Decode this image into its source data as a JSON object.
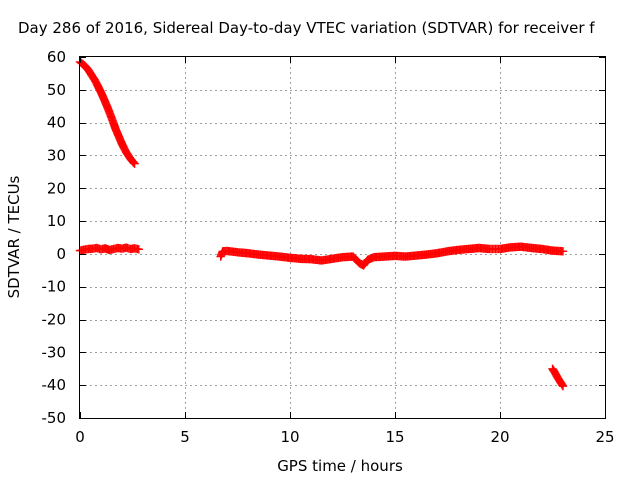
{
  "chart_data": {
    "type": "scatter",
    "title": "Day 286 of 2016, Sidereal Day-to-day VTEC variation (SDTVAR) for receiver f",
    "xlabel": "GPS time / hours",
    "ylabel": "SDTVAR / TECUs",
    "xlim": [
      0,
      25
    ],
    "ylim": [
      -50,
      60
    ],
    "x_ticks": [
      "0",
      "5",
      "10",
      "15",
      "20",
      "25"
    ],
    "y_ticks": [
      "60",
      "50",
      "40",
      "30",
      "20",
      "10",
      "0",
      "-10",
      "-20",
      "-30",
      "-40",
      "-50"
    ],
    "grid": true,
    "legend": "none",
    "marker": "plus",
    "series_color": "#ff0000",
    "series": [
      {
        "segment": "early-descending",
        "x": [
          0.0,
          0.1,
          0.2,
          0.3,
          0.4,
          0.5,
          0.6,
          0.7,
          0.8,
          0.9,
          1.0,
          1.1,
          1.2,
          1.3,
          1.4,
          1.5,
          1.6,
          1.7,
          1.8,
          1.9,
          2.0,
          2.1,
          2.2,
          2.3,
          2.4,
          2.5,
          2.6
        ],
        "y": [
          58.5,
          58.0,
          57.5,
          56.8,
          56.0,
          55.0,
          54.0,
          53.0,
          51.8,
          50.5,
          49.2,
          47.8,
          46.3,
          44.8,
          43.2,
          41.5,
          39.8,
          38.0,
          36.5,
          35.0,
          33.5,
          32.2,
          31.0,
          30.0,
          29.0,
          28.2,
          27.5
        ]
      },
      {
        "segment": "early-near-zero",
        "x": [
          0.0,
          0.2,
          0.4,
          0.6,
          0.8,
          1.0,
          1.2,
          1.4,
          1.6,
          1.8,
          2.0,
          2.2,
          2.4,
          2.6,
          2.8
        ],
        "y": [
          1.0,
          1.3,
          1.5,
          1.6,
          1.8,
          1.4,
          1.7,
          1.2,
          1.5,
          1.8,
          1.6,
          1.9,
          1.5,
          1.7,
          1.4
        ]
      },
      {
        "segment": "main-near-zero",
        "x": [
          6.7,
          6.8,
          7.0,
          7.5,
          8.0,
          8.5,
          9.0,
          9.5,
          10.0,
          10.5,
          11.0,
          11.5,
          12.0,
          12.5,
          13.0,
          13.3,
          13.5,
          13.7,
          14.0,
          14.5,
          15.0,
          15.5,
          16.0,
          16.5,
          17.0,
          17.5,
          18.0,
          18.5,
          19.0,
          19.5,
          20.0,
          20.5,
          21.0,
          21.5,
          22.0,
          22.5,
          23.0
        ],
        "y": [
          -0.8,
          0.8,
          0.9,
          0.5,
          0.2,
          -0.2,
          -0.5,
          -0.8,
          -1.2,
          -1.5,
          -1.6,
          -2.0,
          -1.5,
          -1.0,
          -0.8,
          -2.8,
          -3.5,
          -1.8,
          -1.0,
          -0.8,
          -0.6,
          -0.8,
          -0.5,
          -0.2,
          0.2,
          0.8,
          1.2,
          1.5,
          1.8,
          1.5,
          1.5,
          2.0,
          2.2,
          1.8,
          1.5,
          1.0,
          0.8
        ]
      },
      {
        "segment": "late-descending",
        "x": [
          22.5,
          22.6,
          22.7,
          22.8,
          22.9,
          23.0
        ],
        "y": [
          -35.0,
          -36.0,
          -37.2,
          -38.3,
          -39.3,
          -40.3
        ]
      }
    ]
  }
}
